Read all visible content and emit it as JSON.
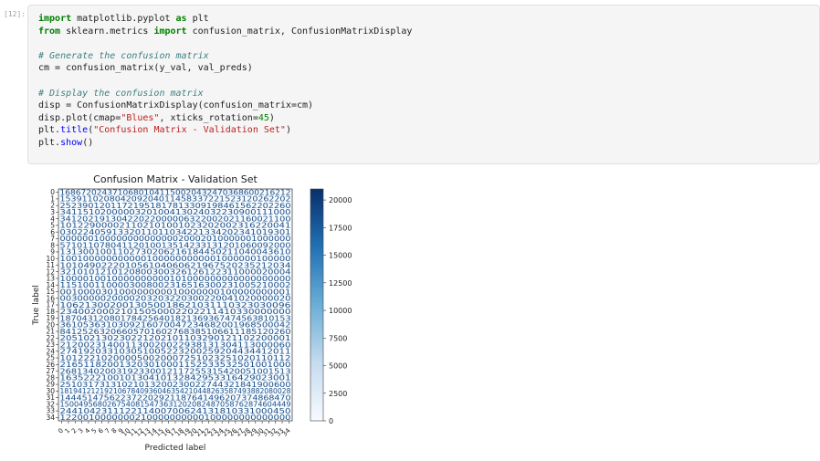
{
  "cell": {
    "prompt": "[12]:",
    "code_lines": [
      [
        {
          "t": "import",
          "c": "kw"
        },
        {
          "t": " matplotlib.pyplot "
        },
        {
          "t": "as",
          "c": "kw"
        },
        {
          "t": " plt"
        }
      ],
      [
        {
          "t": "from",
          "c": "kw"
        },
        {
          "t": " sklearn.metrics "
        },
        {
          "t": "import",
          "c": "kw"
        },
        {
          "t": " confusion_matrix, ConfusionMatrixDisplay"
        }
      ],
      [],
      [
        {
          "t": "# Generate the confusion matrix",
          "c": "cm"
        }
      ],
      [
        {
          "t": "cm = confusion_matrix(y_val, val_preds)"
        }
      ],
      [],
      [
        {
          "t": "# Display the confusion matrix",
          "c": "cm"
        }
      ],
      [
        {
          "t": "disp = ConfusionMatrixDisplay(confusion_matrix=cm)"
        }
      ],
      [
        {
          "t": "disp.plot(cmap="
        },
        {
          "t": "\"Blues\"",
          "c": "str"
        },
        {
          "t": ", xticks_rotation="
        },
        {
          "t": "45",
          "c": "num"
        },
        {
          "t": ")"
        }
      ],
      [
        {
          "t": "plt."
        },
        {
          "t": "title",
          "c": "fn"
        },
        {
          "t": "("
        },
        {
          "t": "\"Confusion Matrix - Validation Set\"",
          "c": "str"
        },
        {
          "t": ")"
        }
      ],
      [
        {
          "t": "plt."
        },
        {
          "t": "show",
          "c": "fn"
        },
        {
          "t": "()"
        }
      ]
    ]
  },
  "chart_data": {
    "type": "heatmap",
    "title": "Confusion Matrix - Validation Set",
    "xlabel": "Predicted label",
    "ylabel": "True label",
    "labels": [
      "0",
      "1",
      "2",
      "3",
      "4",
      "5",
      "6",
      "7",
      "8",
      "9",
      "10",
      "11",
      "12",
      "13",
      "14",
      "15",
      "16",
      "17",
      "18",
      "19",
      "20",
      "21",
      "22",
      "23",
      "24",
      "25",
      "26",
      "27",
      "28",
      "29",
      "30",
      "31",
      "32",
      "33",
      "34"
    ],
    "colorbar": {
      "min": 0,
      "max": 21000,
      "ticks": [
        0,
        2500,
        5000,
        7500,
        10000,
        12500,
        15000,
        17500,
        20000
      ],
      "cmap": "Blues"
    },
    "row_texts": [
      "16867202437106801041150020432470368600216212",
      "153911020804209204011458337221523120262202",
      "25239012011721951817813309198461562202260",
      "3411510200000320100413024032230900111000",
      "34120219130422022000006322002021160021100",
      "101229000021102101001023202002316220041",
      "0302240591332011011034221334202341019301",
      "00000010000000000000020002010000001000000",
      "57101107804112010013514233131201060092000",
      "1313001001102730206216184450211040043610",
      "1001000000000001000000000001000000100000",
      "101049022201056104060621967520235212034",
      "3210101210120800300326126122311000020004",
      "1000010010000000000101000000000000000000",
      "1151001100003008002316516300231005210002",
      "001000030100000000010000000100000000001",
      "0030000020000203203220300220041020000020",
      "1062130020013050018621031110323030096",
      "23400200021015050002202211410330000000",
      "187043120801784256401821369367474563810153",
      "3610536310309216070047234682001968500042",
      "84125263206605701602768385106611185120260",
      "205102130230221202101103290121102200001",
      "212002314001130020022938131304113000060",
      "274192033103051005223200259204434412011",
      "101222102000050020007251023251020110112",
      "216511820013203010001152533532501001000",
      "26813402003192330012117255315420051001513",
      "163522210010130410132842953316429023001",
      "25103173131021013200230022744321841900600",
      "1819412121921067840936046354210448263587493882080028",
      "144451475622372202921187641496207374868470",
      "1500495680267540815473631202082487058762874604449",
      "244104231112211400700624131810331000450",
      "1220010000000210000000000100000000000000"
    ]
  }
}
